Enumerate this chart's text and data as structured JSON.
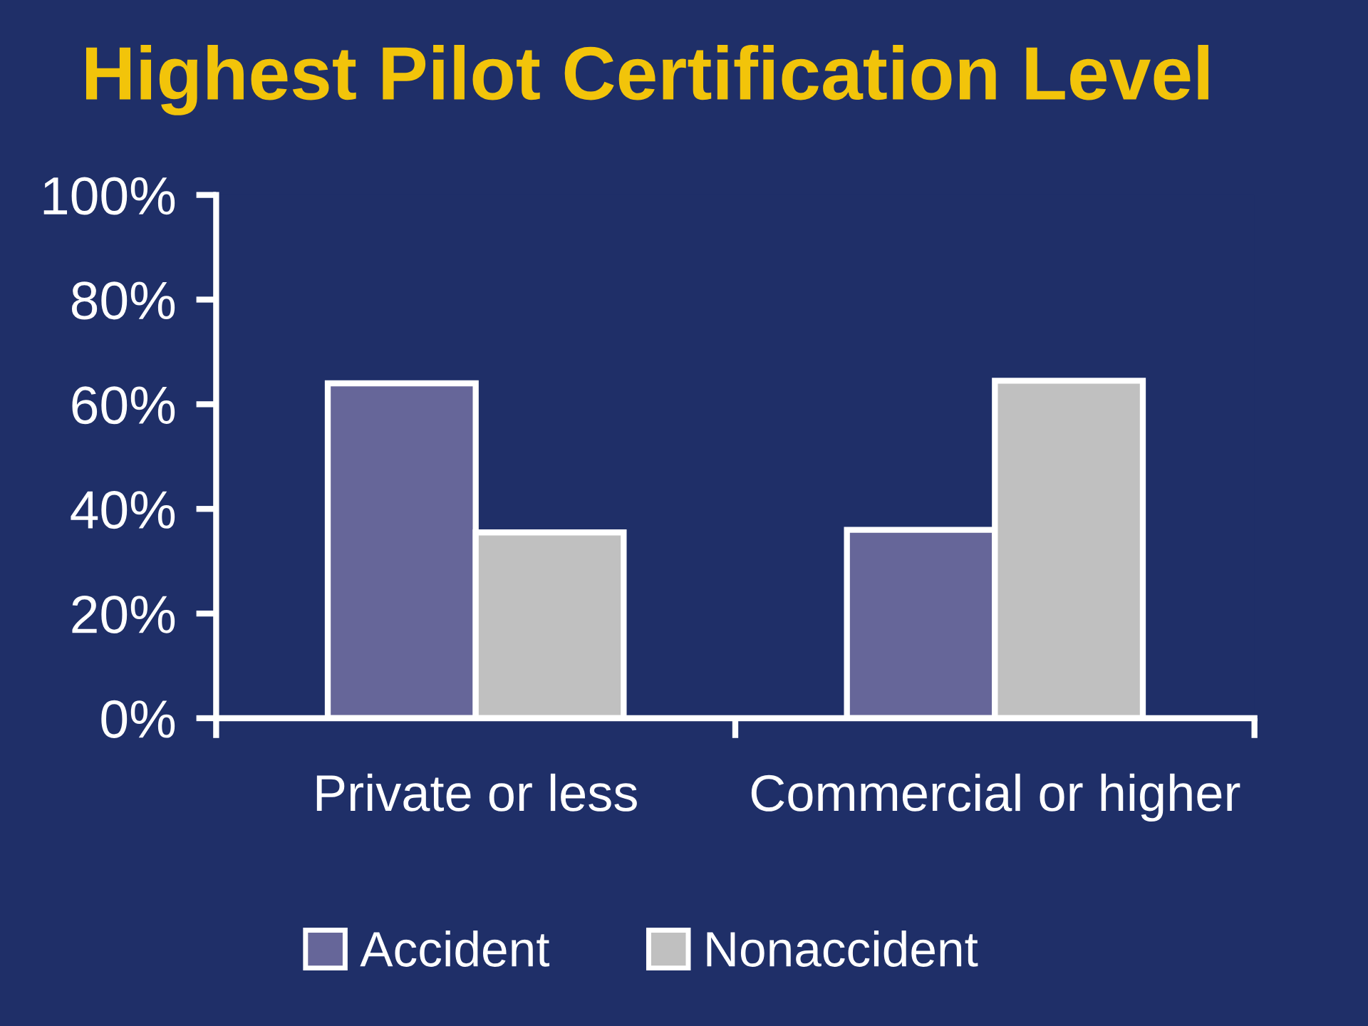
{
  "chart_data": {
    "type": "bar",
    "title": "Highest Pilot Certification Level",
    "categories": [
      "Private or less",
      "Commercial or higher"
    ],
    "series": [
      {
        "name": "Accident",
        "color": "#666699",
        "values": [
          64,
          36
        ]
      },
      {
        "name": "Nonaccident",
        "color": "#c0c0c0",
        "values": [
          35.5,
          64.5
        ]
      }
    ],
    "ylim": [
      0,
      100
    ],
    "yticks": [
      {
        "value": 0,
        "label": "0%"
      },
      {
        "value": 20,
        "label": "20%"
      },
      {
        "value": 40,
        "label": "40%"
      },
      {
        "value": 60,
        "label": "60%"
      },
      {
        "value": 80,
        "label": "80%"
      },
      {
        "value": 100,
        "label": "100%"
      }
    ],
    "grid": false,
    "legend": "bottom"
  }
}
